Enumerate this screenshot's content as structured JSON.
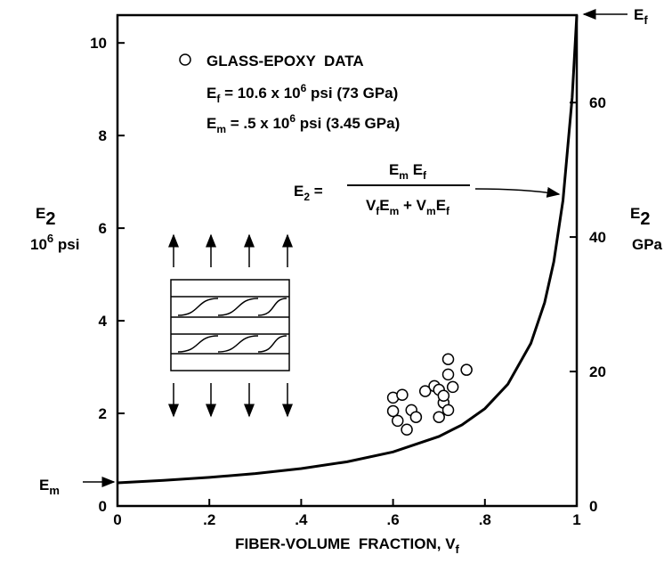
{
  "chart_data": {
    "type": "scatter",
    "xlabel": [
      "FIBER-VOLUME  FRACTION, V",
      "f"
    ],
    "ylabel": [
      "E",
      "2"
    ],
    "yunit": [
      "10",
      "6",
      " psi"
    ],
    "y2label": [
      "E",
      "2"
    ],
    "y2unit": "GPa",
    "xlim": [
      0,
      1
    ],
    "xticks": [
      0,
      {
        "value": 0.2,
        "label": ".2"
      },
      {
        "value": 0.4,
        "label": ".4"
      },
      {
        "value": 0.6,
        "label": ".6"
      },
      {
        "value": 0.8,
        "label": ".8"
      },
      1
    ],
    "ylim": [
      0,
      10.6
    ],
    "yticks": [
      0,
      2,
      4,
      6,
      8,
      10
    ],
    "y2lim": [
      0,
      73
    ],
    "y2ticks": [
      0,
      20,
      40,
      60
    ],
    "grid": false,
    "series": [
      {
        "type": "scatter",
        "name": "GLASS-EPOXY  DATA",
        "color": "#000000",
        "x": [
          0.6,
          0.62,
          0.6,
          0.61,
          0.63,
          0.64,
          0.65,
          0.67,
          0.69,
          0.7,
          0.71,
          0.7,
          0.72,
          0.72,
          0.72,
          0.73,
          0.71,
          0.76
        ],
        "values": [
          2.34,
          2.4,
          2.05,
          1.84,
          1.65,
          2.07,
          1.92,
          2.48,
          2.59,
          2.51,
          2.23,
          1.92,
          2.07,
          2.84,
          3.17,
          2.57,
          2.38,
          2.94
        ]
      },
      {
        "type": "line",
        "color": "#000000",
        "x": [
          0,
          0.1,
          0.2,
          0.3,
          0.4,
          0.5,
          0.6,
          0.7,
          0.75,
          0.8,
          0.85,
          0.9,
          0.93,
          0.95,
          0.97,
          0.99,
          1.0
        ],
        "values": [
          0.5,
          0.553,
          0.618,
          0.7,
          0.808,
          0.955,
          1.167,
          1.501,
          1.752,
          2.103,
          2.63,
          3.51,
          4.391,
          5.274,
          6.6,
          8.819,
          10.6
        ]
      }
    ],
    "annotations": [
      [
        "E",
        "f",
        " = 10.6 x 10",
        "6",
        " psi (73 GPa)"
      ],
      [
        "E",
        "m",
        " = .5 x 10",
        "6",
        " psi (3.45 GPa)"
      ]
    ],
    "formula": {
      "lhs": [
        "E",
        "2",
        " ="
      ],
      "numerator": [
        "E",
        "m",
        " E",
        "f"
      ],
      "denominator": [
        "V",
        "f",
        "E",
        "m",
        " + V",
        "m",
        "E",
        "f"
      ]
    },
    "ef_marker": [
      "E",
      "f"
    ],
    "em_marker": [
      "E",
      "m"
    ]
  }
}
